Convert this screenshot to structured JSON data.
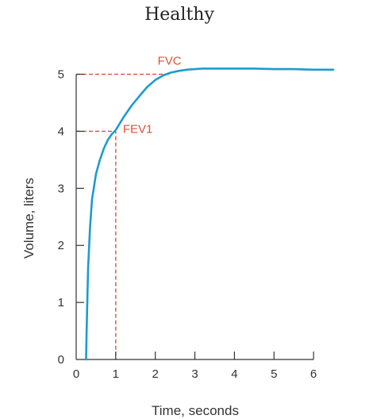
{
  "chart_data": {
    "type": "line",
    "title": "Healthy",
    "xlabel": "Time, seconds",
    "ylabel": "Volume, liters",
    "xlim": [
      0,
      6.6
    ],
    "ylim": [
      0,
      5.3
    ],
    "xticks": [
      0,
      1,
      2,
      3,
      4,
      5,
      6
    ],
    "yticks": [
      0,
      1,
      2,
      3,
      4,
      5
    ],
    "grid": false,
    "series": [
      {
        "color": "#1b9ccf",
        "x": [
          0.25,
          0.26,
          0.28,
          0.3,
          0.35,
          0.4,
          0.5,
          0.6,
          0.7,
          0.8,
          0.9,
          1.0,
          1.2,
          1.4,
          1.6,
          1.8,
          2.0,
          2.2,
          2.4,
          2.6,
          2.8,
          3.0,
          3.2,
          3.6,
          4.0,
          4.5,
          5.0,
          5.5,
          6.0,
          6.5
        ],
        "y": [
          0.0,
          0.4,
          1.0,
          1.6,
          2.3,
          2.8,
          3.25,
          3.5,
          3.7,
          3.85,
          3.95,
          4.02,
          4.25,
          4.45,
          4.62,
          4.78,
          4.9,
          4.98,
          5.03,
          5.06,
          5.08,
          5.09,
          5.1,
          5.1,
          5.1,
          5.1,
          5.09,
          5.09,
          5.08,
          5.08
        ]
      }
    ],
    "annotations": [
      {
        "label": "FVC",
        "x": 2.4,
        "y": 5.0,
        "color": "#e04e39"
      },
      {
        "label": "FEV1",
        "x": 1.0,
        "y": 4.0,
        "color": "#e04e39"
      }
    ]
  }
}
